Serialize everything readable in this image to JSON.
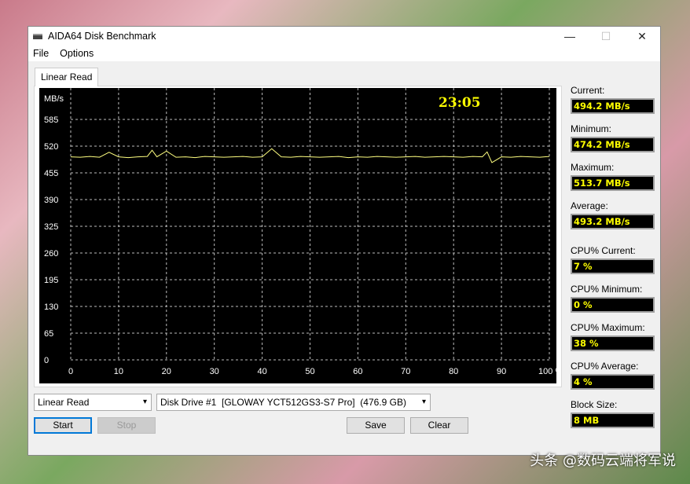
{
  "window": {
    "title": "AIDA64 Disk Benchmark",
    "minimize": "—",
    "maximize": "☐",
    "close": "✕"
  },
  "menu": [
    "File",
    "Options"
  ],
  "tab": "Linear Read",
  "chart_data": {
    "type": "line",
    "ylabel": "MB/s",
    "timer": "23:05",
    "xlim": [
      0,
      100
    ],
    "ylim": [
      0,
      650
    ],
    "xticks": [
      "0",
      "10",
      "20",
      "30",
      "40",
      "50",
      "60",
      "70",
      "80",
      "90",
      "100 %"
    ],
    "yticks": [
      "0",
      "65",
      "130",
      "195",
      "260",
      "325",
      "390",
      "455",
      "520",
      "585"
    ],
    "grid": true,
    "line_color": "#ffff80",
    "x": [
      0,
      2,
      4,
      6,
      8,
      10,
      12,
      14,
      16,
      17,
      18,
      20,
      22,
      24,
      26,
      28,
      30,
      32,
      34,
      36,
      38,
      40,
      42,
      44,
      46,
      48,
      50,
      52,
      54,
      56,
      58,
      60,
      62,
      64,
      66,
      68,
      70,
      72,
      74,
      76,
      78,
      80,
      82,
      84,
      86,
      87,
      88,
      90,
      92,
      94,
      96,
      98,
      100
    ],
    "values": [
      494,
      493,
      495,
      493,
      505,
      494,
      492,
      494,
      495,
      510,
      494,
      508,
      493,
      494,
      492,
      495,
      494,
      493,
      494,
      495,
      493,
      494,
      513.7,
      494,
      493,
      495,
      494,
      493,
      494,
      495,
      492,
      494,
      493,
      495,
      494,
      493,
      494,
      495,
      493,
      494,
      495,
      494,
      493,
      495,
      494,
      506,
      480,
      494,
      493,
      495,
      494,
      493,
      495
    ]
  },
  "stats": [
    {
      "label": "Current:",
      "value": "494.2 MB/s"
    },
    {
      "label": "Minimum:",
      "value": "474.2 MB/s"
    },
    {
      "label": "Maximum:",
      "value": "513.7 MB/s"
    },
    {
      "label": "Average:",
      "value": "493.2 MB/s"
    },
    {
      "label": "CPU% Current:",
      "value": "7 %"
    },
    {
      "label": "CPU% Minimum:",
      "value": "0 %"
    },
    {
      "label": "CPU% Maximum:",
      "value": "38 %"
    },
    {
      "label": "CPU% Average:",
      "value": "4 %"
    },
    {
      "label": "Block Size:",
      "value": "8 MB"
    }
  ],
  "controls": {
    "test_select": "Linear Read",
    "drive_select": "Disk Drive #1  [GLOWAY YCT512GS3-S7 Pro]  (476.9 GB)",
    "start": "Start",
    "stop": "Stop",
    "save": "Save",
    "clear": "Clear"
  },
  "watermark": "头条 @数码云端将军说"
}
